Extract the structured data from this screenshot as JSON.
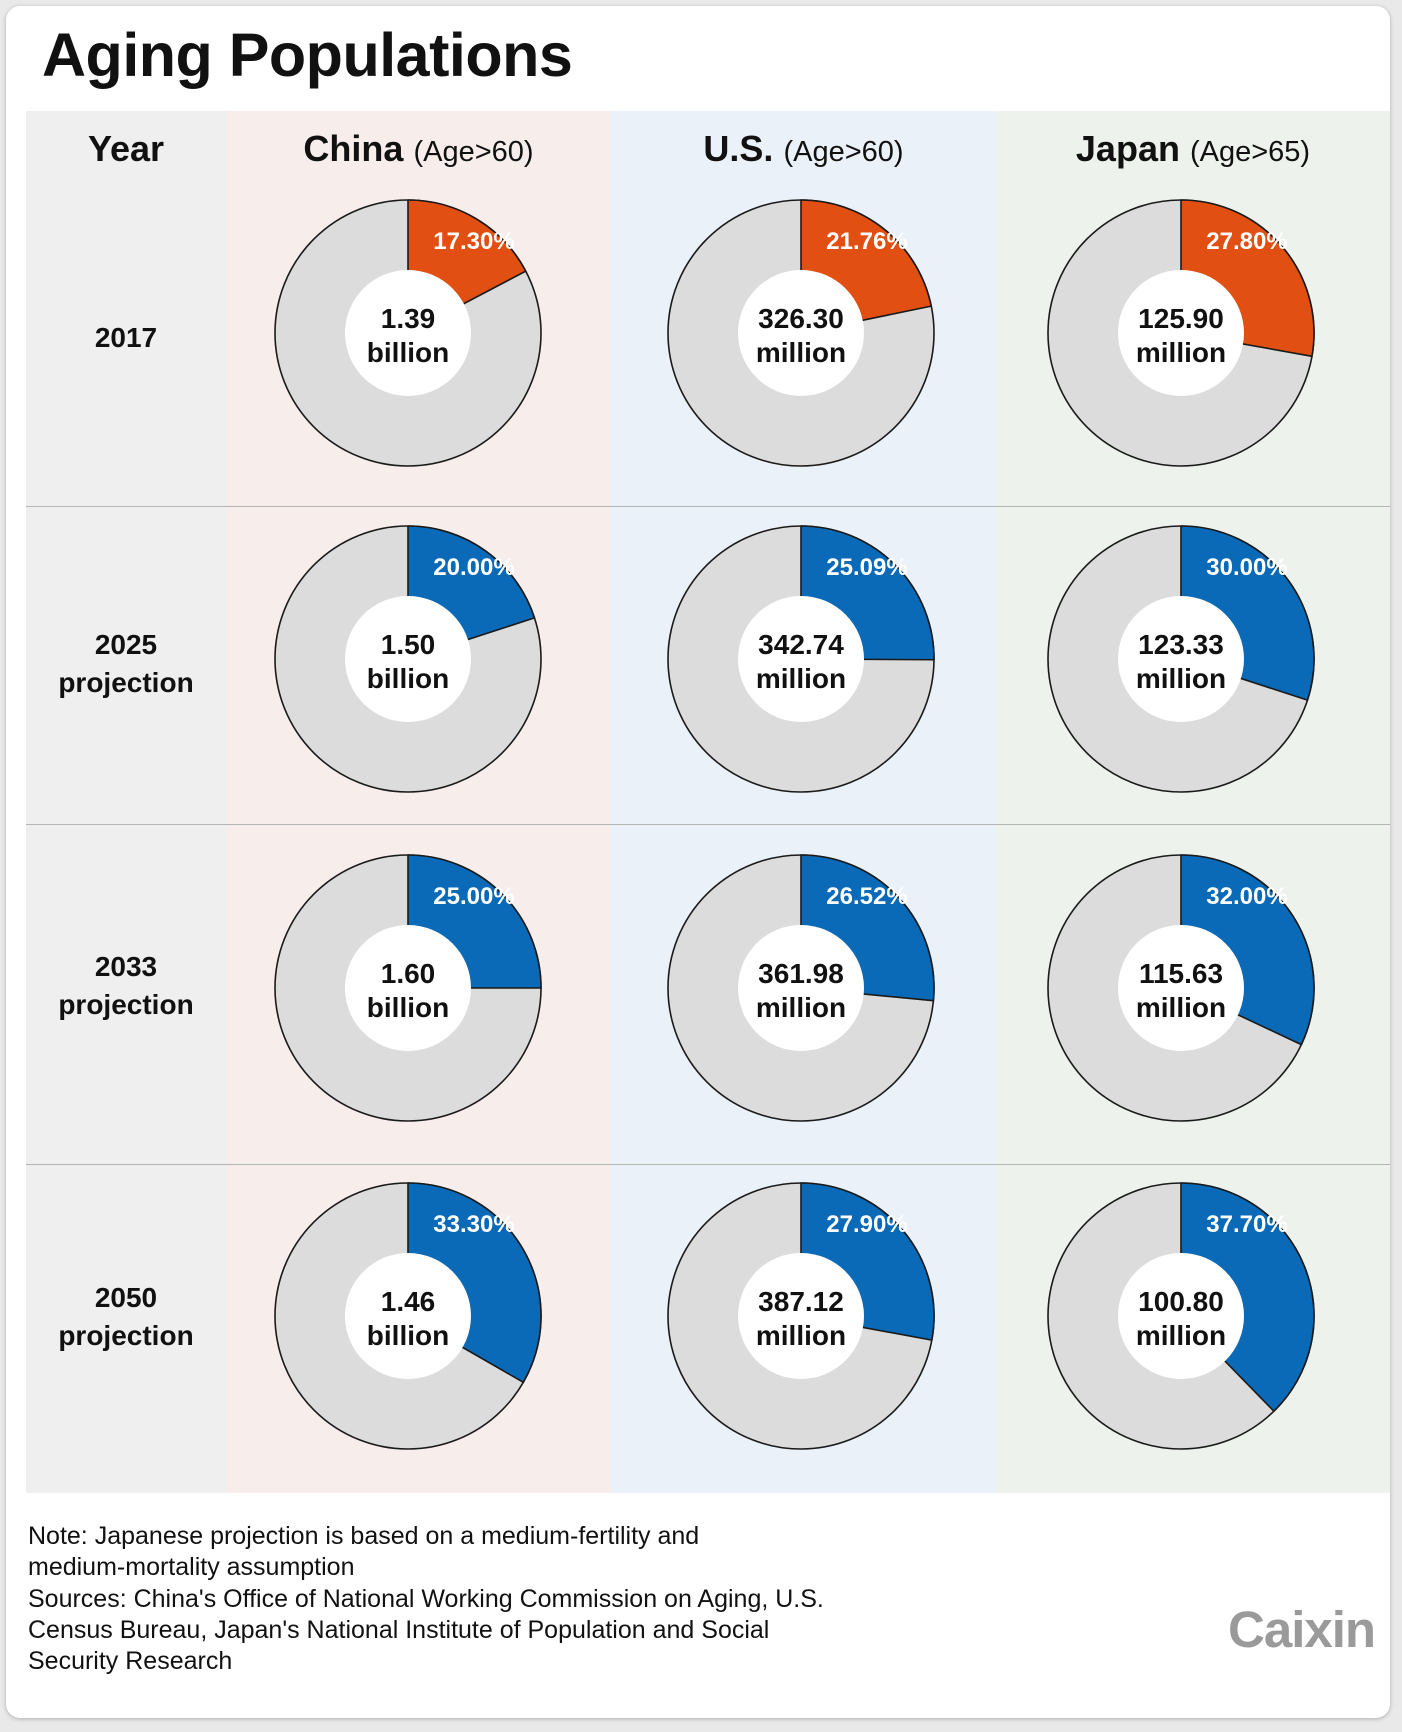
{
  "title": "Aging Populations",
  "header": {
    "year": "Year"
  },
  "countries": [
    {
      "name": "China",
      "age": "(Age>60)"
    },
    {
      "name": "U.S.",
      "age": "(Age>60)"
    },
    {
      "name": "Japan",
      "age": "(Age>65)"
    }
  ],
  "rows": [
    {
      "line1": "2017",
      "line2": ""
    },
    {
      "line1": "2025",
      "line2": "projection"
    },
    {
      "line1": "2033",
      "line2": "projection"
    },
    {
      "line1": "2050",
      "line2": "projection"
    }
  ],
  "colors": {
    "actual": "#e15012",
    "projection": "#0a6ab8",
    "rest": "#dcdcdc",
    "hole": "#ffffff"
  },
  "chart_data": {
    "type": "pie",
    "title": "Aging Populations",
    "series": [
      {
        "name": "China (Age>60)",
        "years": [
          "2017",
          "2025",
          "2033",
          "2050"
        ],
        "percent": [
          17.3,
          20.0,
          25.0,
          33.3
        ],
        "labels": [
          "17.30%",
          "20.00%",
          "25.00%",
          "33.30%"
        ],
        "population": [
          [
            "1.39",
            "billion"
          ],
          [
            "1.50",
            "billion"
          ],
          [
            "1.60",
            "billion"
          ],
          [
            "1.46",
            "billion"
          ]
        ]
      },
      {
        "name": "U.S. (Age>60)",
        "years": [
          "2017",
          "2025",
          "2033",
          "2050"
        ],
        "percent": [
          21.76,
          25.09,
          26.52,
          27.9
        ],
        "labels": [
          "21.76%",
          "25.09%",
          "26.52%",
          "27.90%"
        ],
        "population": [
          [
            "326.30",
            "million"
          ],
          [
            "342.74",
            "million"
          ],
          [
            "361.98",
            "million"
          ],
          [
            "387.12",
            "million"
          ]
        ]
      },
      {
        "name": "Japan (Age>65)",
        "years": [
          "2017",
          "2025",
          "2033",
          "2050"
        ],
        "percent": [
          27.8,
          30.0,
          32.0,
          37.7
        ],
        "labels": [
          "27.80%",
          "30.00%",
          "32.00%",
          "37.70%"
        ],
        "population": [
          [
            "125.90",
            "million"
          ],
          [
            "123.33",
            "million"
          ],
          [
            "115.63",
            "million"
          ],
          [
            "100.80",
            "million"
          ]
        ]
      }
    ]
  },
  "note": [
    "Note: Japanese projection is based on a medium-fertility and",
    "medium-mortality assumption"
  ],
  "sources": [
    "Sources: China's Office of National Working Commission on Aging, U.S.",
    "Census Bureau, Japan's National Institute of Population and Social",
    "Security Research"
  ],
  "logo": "Caixin"
}
